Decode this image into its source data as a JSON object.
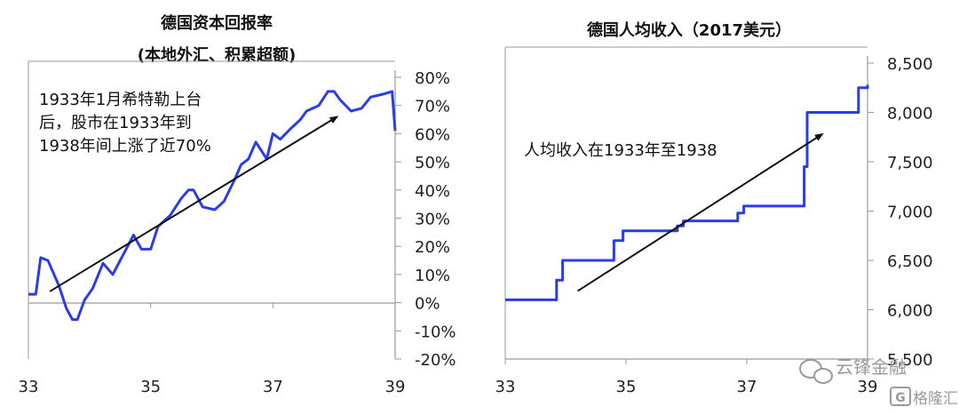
{
  "chart_data": [
    {
      "type": "line",
      "title": "德国资本回报率",
      "subtitle": "(本地外汇、积累超额)",
      "x_ticks": [
        "33",
        "35",
        "37",
        "39"
      ],
      "y_ticks": [
        "80%",
        "70%",
        "60%",
        "50%",
        "40%",
        "30%",
        "20%",
        "10%",
        "0%",
        "-10%",
        "-20%"
      ],
      "xlim": [
        33,
        39
      ],
      "ylim": [
        -20,
        80
      ],
      "grid": false,
      "annotation": [
        "1933年1月希特勒上台",
        "后，股市在1933年到",
        "1938年间上涨了近70%"
      ],
      "trend_arrow": {
        "from": [
          33.35,
          4
        ],
        "to": [
          38.05,
          66
        ]
      },
      "series": [
        {
          "color": "#2b3de8",
          "x": [
            33.0,
            33.12,
            33.2,
            33.32,
            33.5,
            33.62,
            33.72,
            33.8,
            33.92,
            34.05,
            34.22,
            34.38,
            34.55,
            34.72,
            34.85,
            35.0,
            35.12,
            35.32,
            35.5,
            35.62,
            35.7,
            35.85,
            36.05,
            36.2,
            36.38,
            36.48,
            36.6,
            36.72,
            36.9,
            37.0,
            37.12,
            37.3,
            37.45,
            37.55,
            37.75,
            37.9,
            38.0,
            38.1,
            38.28,
            38.45,
            38.6,
            38.8,
            38.95,
            39.0
          ],
          "y": [
            3,
            3,
            16,
            15,
            6,
            -2,
            -6,
            -6,
            1,
            5,
            14,
            10,
            17,
            24,
            19,
            19,
            27,
            31,
            37,
            40,
            40,
            34,
            33,
            36,
            44,
            49,
            51,
            57,
            51,
            60,
            58,
            62,
            65,
            68,
            70,
            75,
            75,
            72,
            68,
            69,
            73,
            74,
            75,
            61
          ]
        }
      ]
    },
    {
      "type": "line",
      "title": "德国人均收入（2017美元）",
      "x_ticks": [
        "33",
        "35",
        "37",
        "39"
      ],
      "y_ticks": [
        "8,500",
        "8,000",
        "7,500",
        "7,000",
        "6,500",
        "6,000",
        "5,500"
      ],
      "xlim": [
        33,
        39
      ],
      "ylim": [
        5500,
        8500
      ],
      "grid": false,
      "annotation": [
        "人均收入在1933年至1938"
      ],
      "trend_arrow": {
        "from": [
          34.2,
          6190
        ],
        "to": [
          38.25,
          7780
        ]
      },
      "series": [
        {
          "color": "#2b3de8",
          "x": [
            33.0,
            33.85,
            33.85,
            33.95,
            33.95,
            34.8,
            34.8,
            34.95,
            34.95,
            35.85,
            35.85,
            35.95,
            35.95,
            36.85,
            36.85,
            36.95,
            36.95,
            37.95,
            37.95,
            38.0,
            38.0,
            38.85,
            38.85,
            39.0,
            39.0
          ],
          "y": [
            6100,
            6100,
            6300,
            6300,
            6500,
            6500,
            6700,
            6700,
            6800,
            6800,
            6850,
            6850,
            6900,
            6900,
            6980,
            6980,
            7050,
            7050,
            7450,
            7450,
            8000,
            8000,
            8250,
            8250,
            8280
          ]
        }
      ]
    }
  ],
  "watermark": {
    "left_text": "云锋金融",
    "right_text": "格隆汇"
  }
}
